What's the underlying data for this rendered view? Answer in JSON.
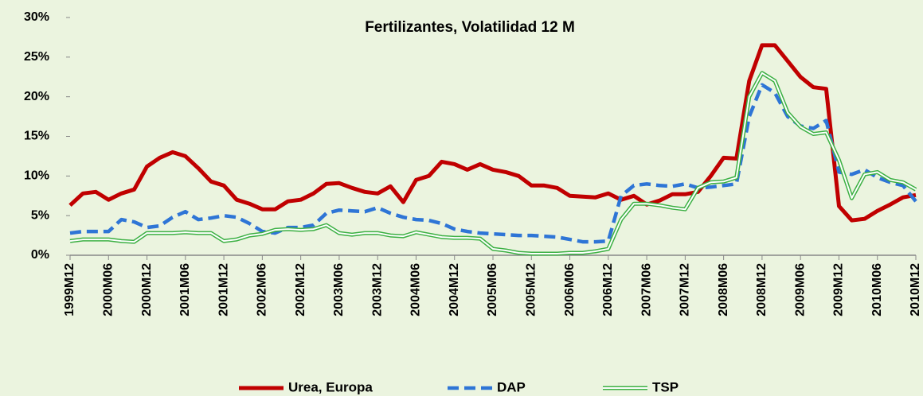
{
  "chart_data": {
    "type": "line",
    "title": "Fertilizantes, Volatilidad 12 M",
    "categories": [
      "1999M12",
      null,
      null,
      "2000M06",
      null,
      null,
      "2000M12",
      null,
      null,
      "2001M06",
      null,
      null,
      "2001M12",
      null,
      null,
      "2002M06",
      null,
      null,
      "2002M12",
      null,
      null,
      "2003M06",
      null,
      null,
      "2003M12",
      null,
      null,
      "2004M06",
      null,
      null,
      "2004M12",
      null,
      null,
      "2005M06",
      null,
      null,
      "2005M12",
      null,
      null,
      "2006M06",
      null,
      null,
      "2006M12",
      null,
      null,
      "2007M06",
      null,
      null,
      "2007M12",
      null,
      null,
      "2008M06",
      null,
      null,
      "2008M12",
      null,
      null,
      "2009M06",
      null,
      null,
      "2009M12",
      null,
      null,
      "2010M06",
      null,
      null,
      "2010M12"
    ],
    "series": [
      {
        "name": "Urea, Europa",
        "color": "#c00000",
        "style": "solid",
        "values": [
          6.3,
          7.8,
          8.0,
          7.0,
          7.8,
          8.3,
          11.2,
          12.3,
          13.0,
          12.5,
          11.0,
          9.3,
          8.8,
          7.0,
          6.5,
          5.8,
          5.8,
          6.8,
          7.0,
          7.8,
          9.0,
          9.1,
          8.5,
          8.0,
          7.8,
          8.7,
          6.7,
          9.5,
          10.0,
          11.8,
          11.5,
          10.8,
          11.5,
          10.8,
          10.5,
          10.0,
          8.8,
          8.8,
          8.5,
          7.5,
          7.4,
          7.3,
          7.8,
          7.0,
          7.5,
          6.4,
          6.9,
          7.7,
          7.7,
          8.0,
          10.0,
          12.3,
          12.2,
          22.0,
          26.5,
          26.5,
          24.5,
          22.5,
          21.2,
          21.0,
          6.2,
          4.4,
          4.6,
          5.6,
          6.4,
          7.3,
          7.6
        ]
      },
      {
        "name": "DAP",
        "color": "#2e75d6",
        "style": "dashed",
        "values": [
          2.8,
          3.0,
          3.0,
          3.0,
          4.5,
          4.2,
          3.5,
          3.7,
          4.8,
          5.5,
          4.5,
          4.7,
          5.0,
          4.8,
          4.0,
          3.0,
          2.8,
          3.5,
          3.5,
          3.8,
          5.3,
          5.7,
          5.6,
          5.5,
          6.0,
          5.3,
          4.8,
          4.5,
          4.4,
          4.0,
          3.3,
          3.0,
          2.8,
          2.7,
          2.6,
          2.5,
          2.5,
          2.4,
          2.3,
          2.0,
          1.7,
          1.7,
          1.8,
          7.5,
          8.8,
          9.0,
          8.8,
          8.7,
          9.0,
          8.5,
          8.6,
          8.8,
          9.0,
          17.5,
          21.5,
          20.5,
          17.5,
          16.3,
          16.0,
          17.0,
          10.5,
          10.2,
          10.8,
          9.8,
          9.2,
          8.8,
          6.8
        ]
      },
      {
        "name": "TSP",
        "color": "#3cb043",
        "style": "double",
        "values": [
          1.8,
          2.0,
          2.0,
          2.0,
          1.8,
          1.7,
          2.8,
          2.8,
          2.8,
          2.9,
          2.8,
          2.8,
          1.8,
          2.0,
          2.5,
          2.7,
          3.2,
          3.3,
          3.2,
          3.3,
          3.8,
          2.8,
          2.6,
          2.8,
          2.8,
          2.5,
          2.4,
          2.9,
          2.6,
          2.3,
          2.2,
          2.2,
          2.1,
          0.8,
          0.6,
          0.3,
          0.2,
          0.2,
          0.2,
          0.3,
          0.3,
          0.5,
          0.8,
          4.5,
          6.5,
          6.5,
          6.3,
          6.0,
          5.8,
          8.5,
          9.2,
          9.3,
          9.8,
          20.0,
          23.0,
          22.0,
          18.0,
          16.2,
          15.3,
          15.5,
          12.0,
          7.2,
          10.2,
          10.5,
          9.5,
          9.2,
          8.3
        ]
      }
    ],
    "ylim": [
      0,
      30
    ],
    "yticks": [
      {
        "value": 0,
        "label": "0%"
      },
      {
        "value": 5,
        "label": "5%"
      },
      {
        "value": 10,
        "label": "10%"
      },
      {
        "value": 15,
        "label": "15%"
      },
      {
        "value": 20,
        "label": "20%"
      },
      {
        "value": 25,
        "label": "25%"
      },
      {
        "value": 30,
        "label": "30%"
      }
    ],
    "legend": "bottom"
  }
}
